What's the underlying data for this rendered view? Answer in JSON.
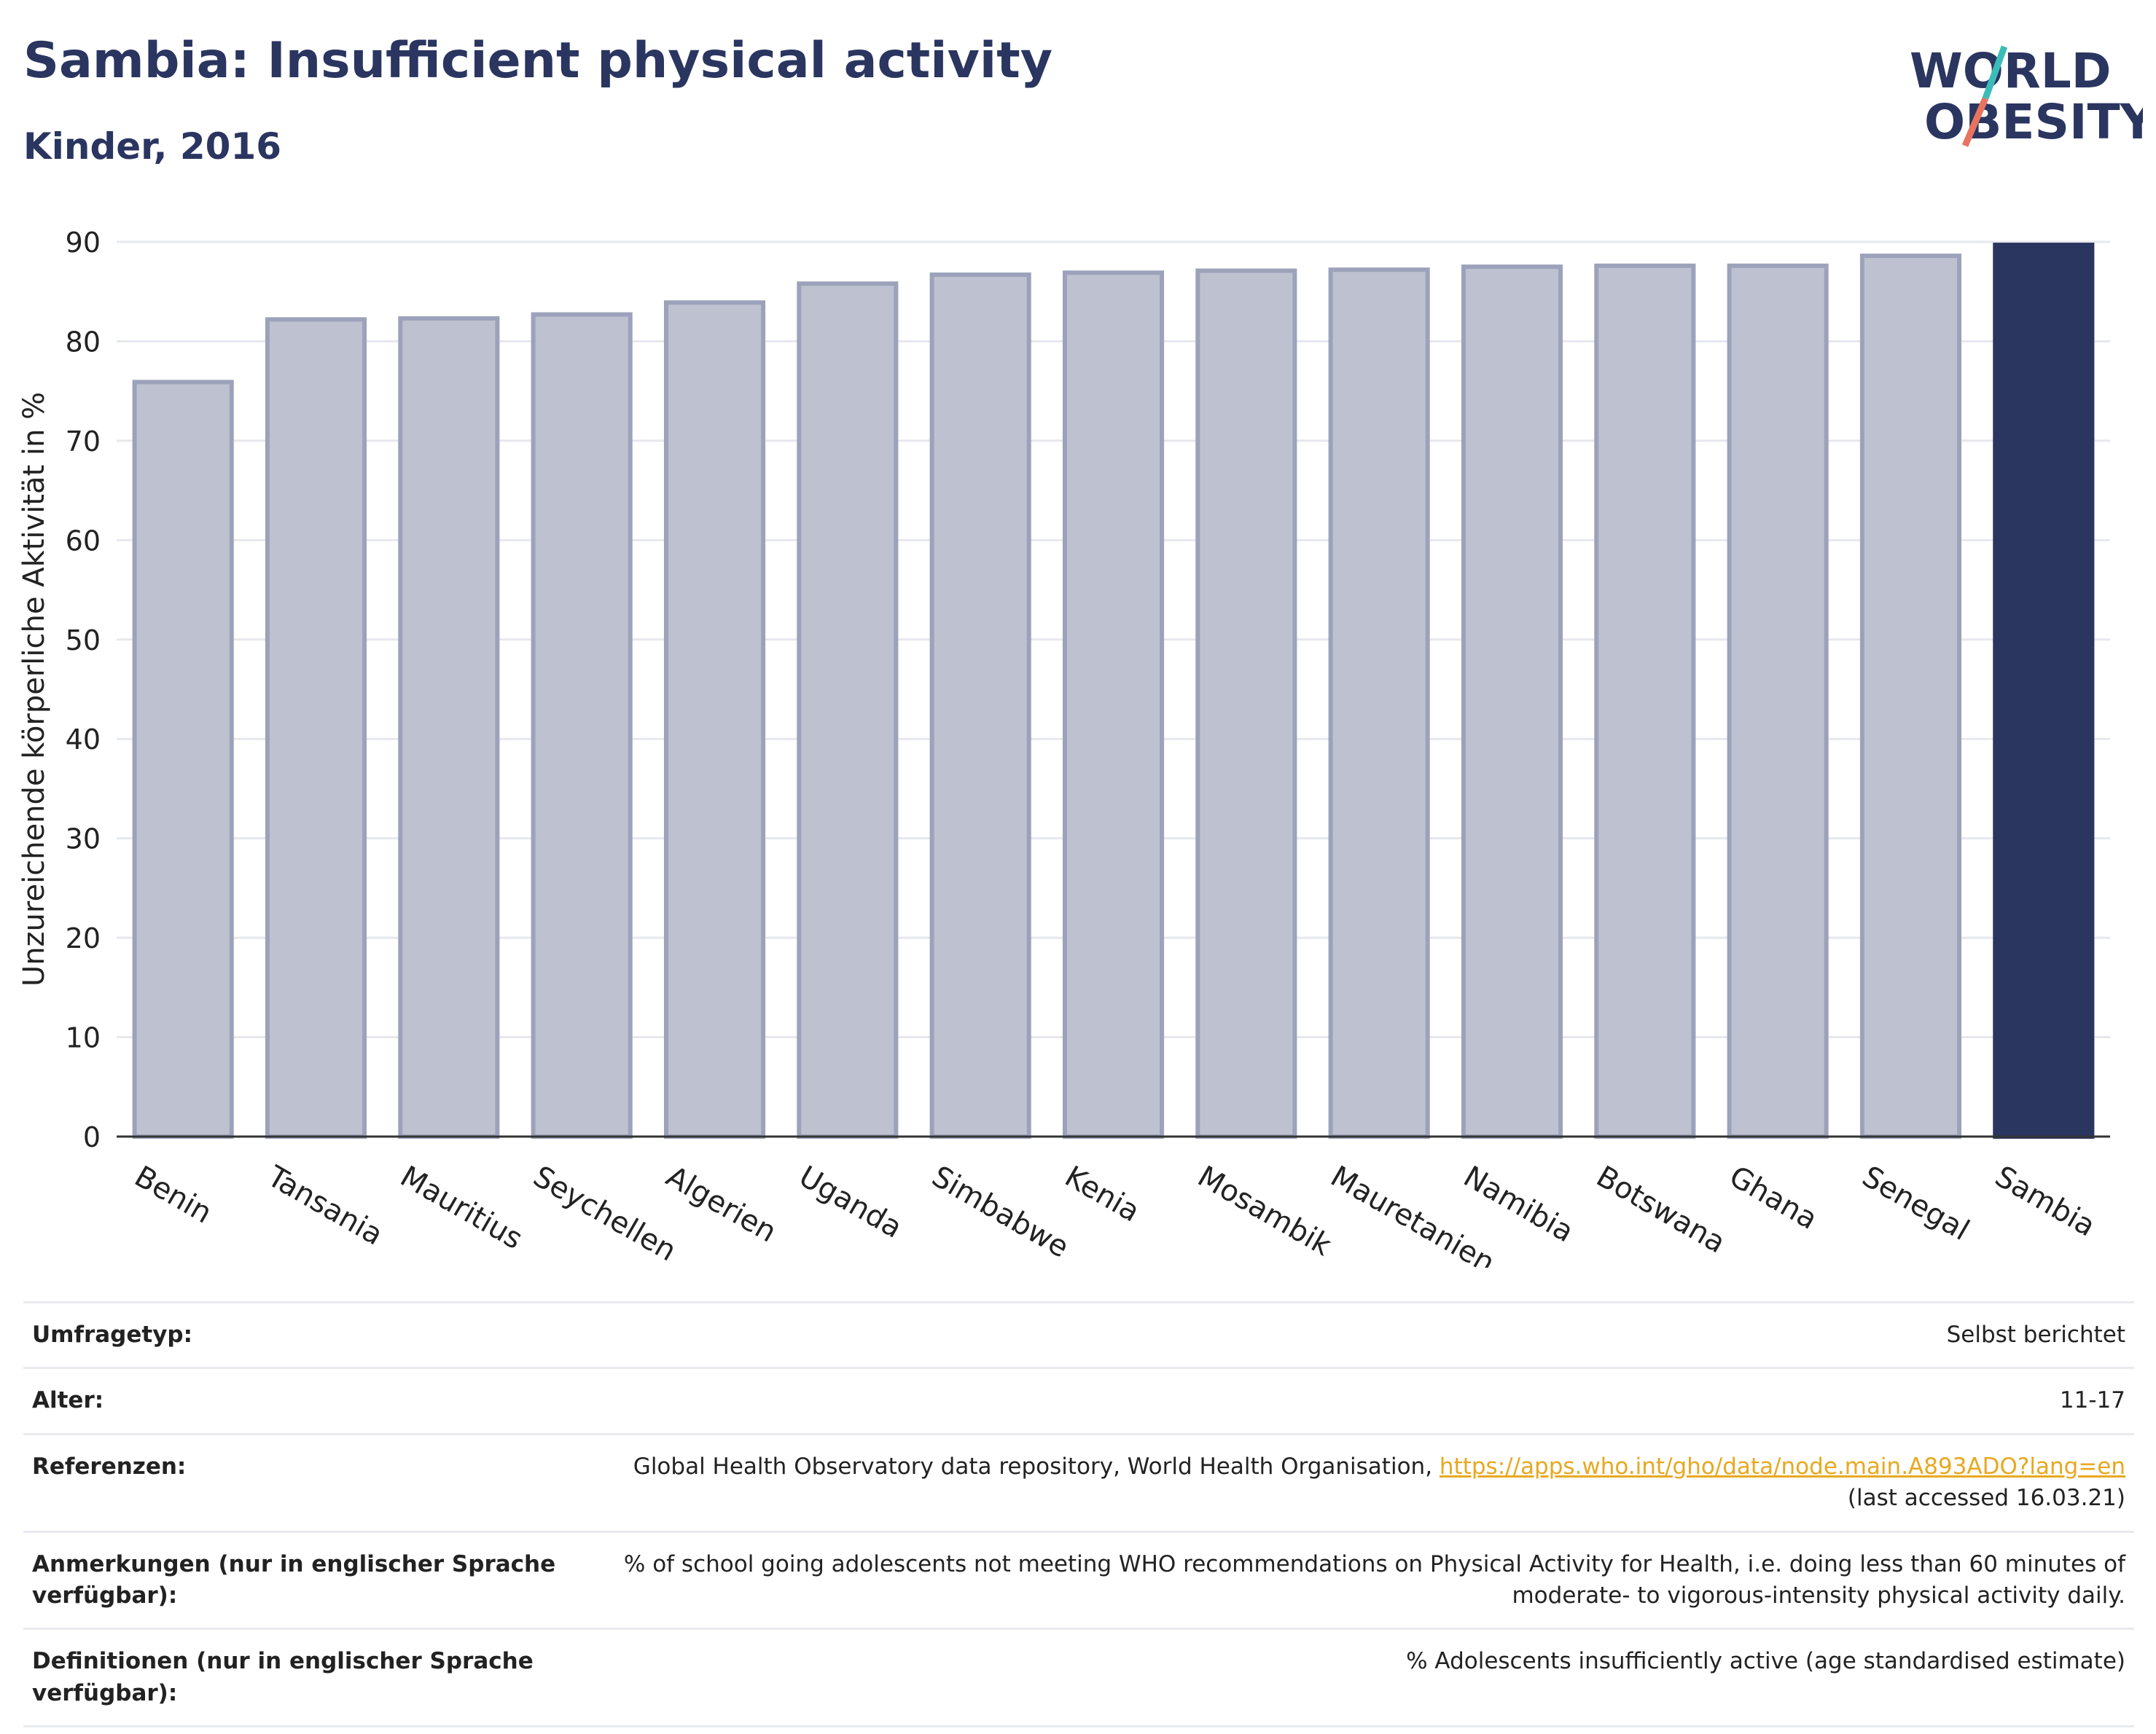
{
  "header": {
    "title": "Sambia: Insufficient physical activity",
    "subtitle": "Kinder, 2016"
  },
  "logo": {
    "line1": "WORLD",
    "line2": "OBESITY"
  },
  "chart_data": {
    "type": "bar",
    "title": "Sambia: Insufficient physical activity",
    "subtitle": "Kinder, 2016",
    "xlabel": "",
    "ylabel": "Unzureichende körperliche Aktivität in %",
    "categories": [
      "Benin",
      "Tansania",
      "Mauritius",
      "Seychellen",
      "Algerien",
      "Uganda",
      "Simbabwe",
      "Kenia",
      "Mosambik",
      "Mauretanien",
      "Namibia",
      "Botswana",
      "Ghana",
      "Senegal",
      "Sambia"
    ],
    "values": [
      75.9,
      82.2,
      82.3,
      82.7,
      83.9,
      85.8,
      86.7,
      86.9,
      87.1,
      87.2,
      87.5,
      87.6,
      87.6,
      88.6,
      89.7
    ],
    "highlight": "Sambia",
    "ylim": [
      0,
      90
    ],
    "yticks": [
      0,
      10,
      20,
      30,
      40,
      50,
      60,
      70,
      80,
      90
    ],
    "grid": true,
    "colors": {
      "bar": "#bec2d0",
      "bar_border": "#9ca2ba",
      "highlight": "#2a3560",
      "grid": "#e6e8ee"
    }
  },
  "info": {
    "survey_type": {
      "label": "Umfragetyp:",
      "value": "Selbst berichtet"
    },
    "age": {
      "label": "Alter:",
      "value": "11-17"
    },
    "references": {
      "label": "Referenzen:",
      "text": "Global Health Observatory data repository, World Health Organisation,",
      "link": "https://apps.who.int/gho/data/node.main.A893ADO?lang=en",
      "accessed": "(last accessed 16.03.21)"
    },
    "notes": {
      "label": "Anmerkungen (nur in englischer Sprache verfügbar):",
      "value": "% of school going adolescents not meeting WHO recommendations on Physical Activity for Health, i.e. doing less than 60 minutes of moderate- to vigorous-intensity physical activity daily."
    },
    "definitions": {
      "label": "Definitionen (nur in englischer Sprache verfügbar):",
      "value": "% Adolescents insufficiently active (age standardised estimate)"
    }
  }
}
